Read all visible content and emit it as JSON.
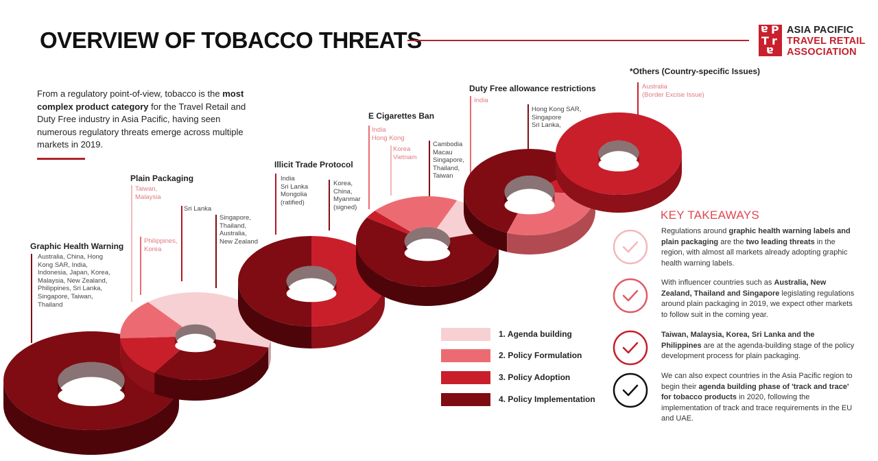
{
  "title": "OVERVIEW OF TOBACCO THREATS",
  "logo": {
    "letters": [
      "a",
      "P",
      "T",
      "r",
      "a"
    ],
    "line1": "ASIA PACIFIC",
    "line2": "TRAVEL RETAIL",
    "line3": "ASSOCIATION"
  },
  "intro": {
    "part1": "From a regulatory point-of-view, tobacco is the ",
    "bold": "most complex product category",
    "part2": " for the Travel Retail and Duty Free industry in Asia Pacific, having seen numerous regulatory threats emerge across multiple markets in 2019."
  },
  "colors": {
    "agenda": "#f7d0d3",
    "formulation": "#ec6b72",
    "adoption": "#c91f2b",
    "implementation": "#7f0c13"
  },
  "stages": [
    {
      "title": "Graphic Health Warning",
      "notes": [
        "Australia, China, Hong\nKong SAR, India,\nIndonesia, Japan, Korea,\nMalaysia, New Zealand,\nPhilippines, Sri Lanka,\nSingapore, Taiwan,\nThailand"
      ]
    },
    {
      "title": "Plain Packaging",
      "notes": [
        "Taiwan,\nMalaysia",
        "Philippines,\nKorea",
        "Sri Lanka",
        "Singapore,\nThailand,\nAustralia,\nNew Zealand"
      ]
    },
    {
      "title": "Illicit Trade Protocol",
      "notes": [
        "India\nSri Lanka\nMongolia\n(ratified)",
        "Korea,\nChina,\nMyanmar\n(signed)"
      ]
    },
    {
      "title": "E Cigarettes Ban",
      "notes": [
        "India\nHong Kong",
        "Korea\nVietnam",
        "Cambodia\nMacau\nSingapore,\nThailand,\nTaiwan"
      ]
    },
    {
      "title": "Duty Free allowance restrictions",
      "notes": [
        "India",
        "Hong Kong SAR,\nSingapore\nSri Lanka,"
      ]
    },
    {
      "title": "*Others (Country-specific Issues)",
      "notes": [
        "Australia\n(Border Excise Issue)"
      ]
    }
  ],
  "legend": [
    {
      "label": "1. Agenda building",
      "color": "#f7d0d3"
    },
    {
      "label": "2. Policy Formulation",
      "color": "#ec6b72"
    },
    {
      "label": "3. Policy Adoption",
      "color": "#c91f2b"
    },
    {
      "label": "4. Policy Implementation",
      "color": "#7f0c13"
    }
  ],
  "key_takeaways": {
    "title": "KEY TAKEAWAYS",
    "items": [
      {
        "icon": "check-circle-icon",
        "icon_color": "#f3b8bc",
        "parts": [
          {
            "t": "Regulations around ",
            "b": false
          },
          {
            "t": "graphic health warning labels and plain packaging",
            "b": true
          },
          {
            "t": " are the ",
            "b": false
          },
          {
            "t": "two leading threats",
            "b": true
          },
          {
            "t": " in the region, with almost all markets already adopting graphic health warning labels.",
            "b": false
          }
        ]
      },
      {
        "icon": "check-circle-icon",
        "icon_color": "#e05a62",
        "parts": [
          {
            "t": "With influencer countries such as ",
            "b": false
          },
          {
            "t": "Australia, New Zealand, Thailand and Singapore",
            "b": true
          },
          {
            "t": " legislating regulations around plain packaging in 2019, we expect other markets to follow suit in the coming year.",
            "b": false
          }
        ]
      },
      {
        "icon": "check-circle-icon",
        "icon_color": "#c41e2a",
        "parts": [
          {
            "t": "Taiwan, Malaysia, Korea, Sri Lanka and the Philippines",
            "b": true
          },
          {
            "t": " are at the agenda-building stage of the policy development process for plain packaging.",
            "b": false
          }
        ]
      },
      {
        "icon": "check-circle-icon",
        "icon_color": "#111111",
        "parts": [
          {
            "t": "We can also expect countries in the Asia Pacific region to begin their ",
            "b": false
          },
          {
            "t": "agenda building phase of 'track and trace' for tobacco products",
            "b": true
          },
          {
            "t": " in 2020, following the implementation of track and trace requirements in the EU and UAE.",
            "b": false
          }
        ]
      }
    ]
  },
  "rings": [
    {
      "name": "graphic-health-warning",
      "shares": {
        "implementation": 1.0
      }
    },
    {
      "name": "plain-packaging",
      "shares": {
        "agenda": 0.4,
        "formulation": 0.15,
        "adoption": 0.15,
        "implementation": 0.3
      }
    },
    {
      "name": "illicit-trade-protocol",
      "shares": {
        "adoption": 0.5,
        "implementation": 0.5
      }
    },
    {
      "name": "e-cigarettes-ban",
      "shares": {
        "agenda": 0.14,
        "formulation": 0.2,
        "adoption": 0.03,
        "implementation": 0.63
      }
    },
    {
      "name": "duty-free-allowance",
      "shares": {
        "formulation": 0.3,
        "adoption": 0.1,
        "implementation": 0.6
      }
    },
    {
      "name": "others",
      "shares": {
        "adoption": 1.0
      }
    }
  ]
}
